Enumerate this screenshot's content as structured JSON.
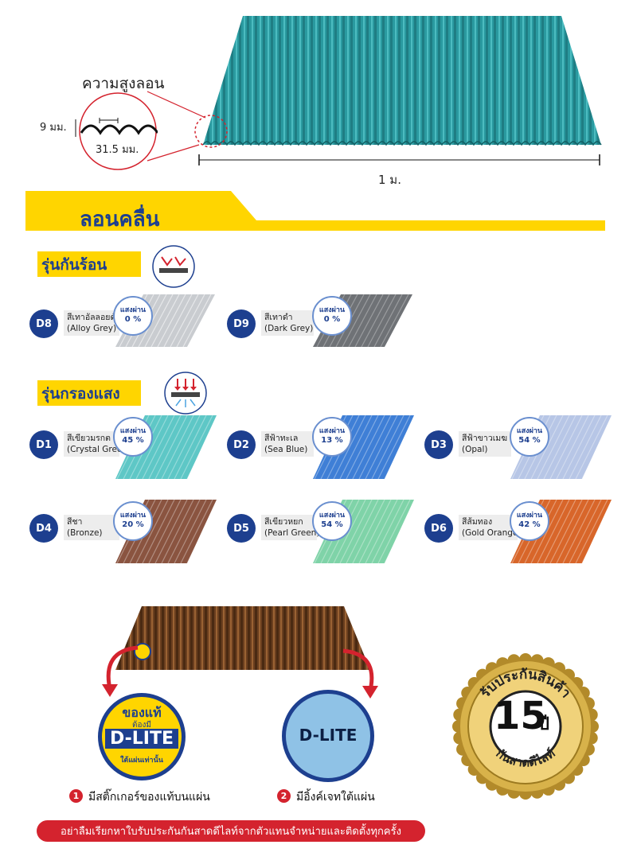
{
  "diagram": {
    "wave_height_label": "ความสูงลอน",
    "height_dim": "9 มม.",
    "pitch_dim": "31.5 มม.",
    "sheet_width": "1 ม."
  },
  "banner": {
    "title": "ลอนคลื่น"
  },
  "heat_section": {
    "title": "รุ่นกันร้อน",
    "products": [
      {
        "code": "D8",
        "name_th": "สีเทาอัลลอยด์",
        "name_en": "(Alloy Grey)",
        "light_label": "แสงผ่าน",
        "light_value": "0 %",
        "color": "#c9ccd0"
      },
      {
        "code": "D9",
        "name_th": "สีเทาดำ",
        "name_en": "(Dark Grey)",
        "light_label": "แสงผ่าน",
        "light_value": "0 %",
        "color": "#6f7276"
      }
    ]
  },
  "filter_section": {
    "title": "รุ่นกรองแสง",
    "products": [
      {
        "code": "D1",
        "name_th": "สีเขียวมรกต",
        "name_en": "(Crystal Green)",
        "light_label": "แสงผ่าน",
        "light_value": "45 %",
        "color": "#5ec7c6"
      },
      {
        "code": "D2",
        "name_th": "สีฟ้าทะเล",
        "name_en": "(Sea Blue)",
        "light_label": "แสงผ่าน",
        "light_value": "13 %",
        "color": "#3f7fd6"
      },
      {
        "code": "D3",
        "name_th": "สีฟ้าขาวเมฆ",
        "name_en": "(Opal)",
        "light_label": "แสงผ่าน",
        "light_value": "54 %",
        "color": "#b7c6e6"
      },
      {
        "code": "D4",
        "name_th": "สีชา",
        "name_en": "(Bronze)",
        "light_label": "แสงผ่าน",
        "light_value": "20 %",
        "color": "#8a5440"
      },
      {
        "code": "D5",
        "name_th": "สีเขียวหยก",
        "name_en": "(Pearl Green)",
        "light_label": "แสงผ่าน",
        "light_value": "54 %",
        "color": "#7fd3a8"
      },
      {
        "code": "D6",
        "name_th": "สีส้มทอง",
        "name_en": "(Gold Orange)",
        "light_label": "แสงผ่าน",
        "light_value": "42 %",
        "color": "#d8662a"
      }
    ]
  },
  "authenticity": {
    "sticker_top": "ของแท้",
    "sticker_must": "ต้องมี",
    "brand": "D-LITE",
    "sticker_bottom": "ใต้แผ่นเท่านั้น",
    "emboss_brand": "D-LITE",
    "step1_num": "1",
    "step1_text": "มีสติ๊กเกอร์ของแท้บนแผ่น",
    "step2_num": "2",
    "step2_text": "มีอิ้งค์เจทใต้แผ่น"
  },
  "warranty": {
    "arc_top": "รับประกันสินค้า",
    "years": "15",
    "unit": "ปี",
    "arc_bottom": "กันสาดดีไลท์"
  },
  "footer": {
    "notice": "อย่าลืมเรียกหาใบรับประกันกันสาดดีไลท์จากตัวแทนจำหน่ายและติดตั้งทุกครั้ง"
  },
  "colors": {
    "navy": "#1d3f8f",
    "yellow": "#ffd500",
    "red": "#d4232e",
    "teal_sheet": "#2a9aa0",
    "gold": "#c9a23a"
  }
}
